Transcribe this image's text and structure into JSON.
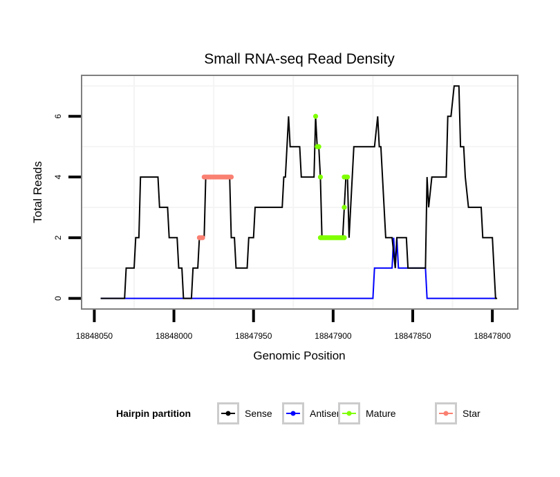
{
  "chart_data": {
    "type": "line",
    "title": "Small RNA-seq Read Density",
    "xlabel": "Genomic Position",
    "ylabel": "Total Reads",
    "x_reversed": true,
    "xlim": [
      18848058,
      18847784
    ],
    "ylim": [
      -0.35,
      7.35
    ],
    "x_ticks": [
      18848050,
      18848000,
      18847950,
      18847900,
      18847850,
      18847800
    ],
    "x_tick_labels": [
      "18848050",
      "18848000",
      "18847950",
      "18847900",
      "18847850",
      "18847800"
    ],
    "y_ticks": [
      0,
      2,
      4,
      6
    ],
    "y_tick_labels": [
      "0",
      "2",
      "4",
      "6"
    ],
    "x_minor_grid": [
      18848025,
      18847975,
      18847925,
      18847875,
      18847825
    ],
    "y_minor_grid": [
      1,
      3,
      5,
      7
    ],
    "grid": true,
    "legend": {
      "title": "Hairpin partition",
      "position": "bottom",
      "entries": [
        "Sense",
        "Antisense",
        "Mature",
        "Star"
      ]
    },
    "series": [
      {
        "name": "Sense",
        "color": "#000000",
        "kind": "line",
        "x": [
          18848046,
          18848031,
          18848030,
          18848025,
          18848024,
          18848022,
          18848021,
          18848010,
          18848009,
          18848004,
          18848003,
          18847998,
          18847997,
          18847995,
          18847994,
          18847989,
          18847988,
          18847985,
          18847984,
          18847981,
          18847980,
          18847965,
          18847964,
          18847962,
          18847961,
          18847954,
          18847953,
          18847950,
          18847949,
          18847932,
          18847931,
          18847930,
          18847928,
          18847927,
          18847921,
          18847920,
          18847912,
          18847911,
          18847910,
          18847909,
          18847908,
          18847907,
          18847894,
          18847893,
          18847892,
          18847891,
          18847890,
          18847887,
          18847874,
          18847872,
          18847871,
          18847870,
          18847867,
          18847863,
          18847861,
          18847860,
          18847854,
          18847853,
          18847842,
          18847841,
          18847840,
          18847838,
          18847829,
          18847828,
          18847826,
          18847824,
          18847821,
          18847820,
          18847818,
          18847817,
          18847815,
          18847807,
          18847806,
          18847800,
          18847798,
          18847797
        ],
        "y": [
          0,
          0,
          1,
          1,
          2,
          2,
          4,
          4,
          3,
          3,
          2,
          2,
          1,
          1,
          0,
          0,
          1,
          1,
          2,
          2,
          4,
          4,
          2,
          2,
          1,
          1,
          2,
          2,
          3,
          3,
          4,
          4,
          6,
          5,
          5,
          4,
          4,
          6,
          5,
          5,
          4,
          2,
          2,
          3,
          4,
          4,
          2,
          5,
          5,
          6,
          5,
          5,
          2,
          2,
          1,
          2,
          2,
          1,
          1,
          4,
          3,
          4,
          4,
          6,
          6,
          7,
          7,
          5,
          5,
          4,
          3,
          3,
          2,
          2,
          0,
          0
        ]
      },
      {
        "name": "Antisense",
        "color": "#0000ff",
        "kind": "line",
        "x": [
          18848046,
          18847875,
          18847874,
          18847863,
          18847862,
          18847861,
          18847860,
          18847859,
          18847842,
          18847841,
          18847798
        ],
        "y": [
          0,
          0,
          1,
          1,
          2,
          1,
          2,
          1,
          1,
          0,
          0
        ]
      },
      {
        "name": "Mature",
        "color": "#7fff00",
        "kind": "points",
        "x": [
          18847911,
          18847910,
          18847909.5,
          18847909,
          18847908,
          18847908,
          18847907,
          18847906,
          18847905,
          18847904,
          18847903,
          18847902,
          18847901,
          18847900,
          18847899,
          18847898,
          18847897,
          18847896,
          18847895,
          18847894,
          18847893,
          18847893,
          18847893,
          18847892,
          18847891
        ],
        "y": [
          6,
          5,
          5,
          5,
          4,
          2,
          2,
          2,
          2,
          2,
          2,
          2,
          2,
          2,
          2,
          2,
          2,
          2,
          2,
          2,
          2,
          3,
          4,
          4,
          4
        ]
      },
      {
        "name": "Star",
        "color": "#fa8072",
        "kind": "points",
        "x": [
          18847984,
          18847983,
          18847982,
          18847981,
          18847980,
          18847979,
          18847978,
          18847977,
          18847976,
          18847975,
          18847974,
          18847973,
          18847972,
          18847971,
          18847970,
          18847969,
          18847968,
          18847967,
          18847966,
          18847965,
          18847964
        ],
        "y": [
          2,
          2,
          2,
          4,
          4,
          4,
          4,
          4,
          4,
          4,
          4,
          4,
          4,
          4,
          4,
          4,
          4,
          4,
          4,
          4,
          4
        ]
      }
    ]
  }
}
